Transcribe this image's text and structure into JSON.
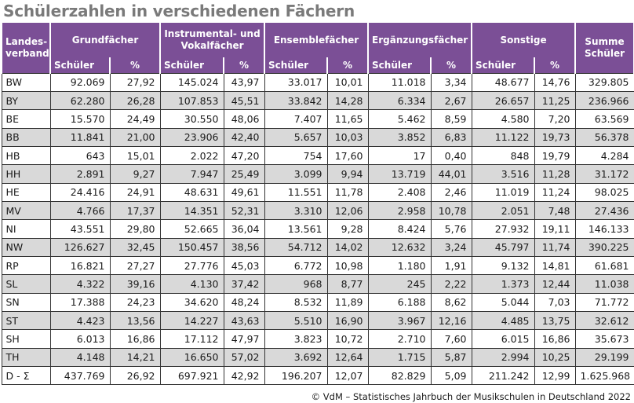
{
  "title": "Schülerzahlen in verschiedenen Fächern",
  "headers": {
    "state": "Landes-verband",
    "groups": [
      "Grundfächer",
      "Instrumental- und Vokalfächer",
      "Ensemblefächer",
      "Ergänzungsfächer",
      "Sonstige"
    ],
    "sum": "Summe Schüler",
    "students": "Schüler",
    "percent": "%"
  },
  "rows": [
    [
      "BW",
      "92.069",
      "27,92",
      "145.024",
      "43,97",
      "33.017",
      "10,01",
      "11.018",
      "3,34",
      "48.677",
      "14,76",
      "329.805"
    ],
    [
      "BY",
      "62.280",
      "26,28",
      "107.853",
      "45,51",
      "33.842",
      "14,28",
      "6.334",
      "2,67",
      "26.657",
      "11,25",
      "236.966"
    ],
    [
      "BE",
      "15.570",
      "24,49",
      "30.550",
      "48,06",
      "7.407",
      "11,65",
      "5.462",
      "8,59",
      "4.580",
      "7,20",
      "63.569"
    ],
    [
      "BB",
      "11.841",
      "21,00",
      "23.906",
      "42,40",
      "5.657",
      "10,03",
      "3.852",
      "6,83",
      "11.122",
      "19,73",
      "56.378"
    ],
    [
      "HB",
      "643",
      "15,01",
      "2.022",
      "47,20",
      "754",
      "17,60",
      "17",
      "0,40",
      "848",
      "19,79",
      "4.284"
    ],
    [
      "HH",
      "2.891",
      "9,27",
      "7.947",
      "25,49",
      "3.099",
      "9,94",
      "13.719",
      "44,01",
      "3.516",
      "11,28",
      "31.172"
    ],
    [
      "HE",
      "24.416",
      "24,91",
      "48.631",
      "49,61",
      "11.551",
      "11,78",
      "2.408",
      "2,46",
      "11.019",
      "11,24",
      "98.025"
    ],
    [
      "MV",
      "4.766",
      "17,37",
      "14.351",
      "52,31",
      "3.310",
      "12,06",
      "2.958",
      "10,78",
      "2.051",
      "7,48",
      "27.436"
    ],
    [
      "NI",
      "43.551",
      "29,80",
      "52.665",
      "36,04",
      "13.561",
      "9,28",
      "8.424",
      "5,76",
      "27.932",
      "19,11",
      "146.133"
    ],
    [
      "NW",
      "126.627",
      "32,45",
      "150.457",
      "38,56",
      "54.712",
      "14,02",
      "12.632",
      "3,24",
      "45.797",
      "11,74",
      "390.225"
    ],
    [
      "RP",
      "16.821",
      "27,27",
      "27.776",
      "45,03",
      "6.772",
      "10,98",
      "1.180",
      "1,91",
      "9.132",
      "14,81",
      "61.681"
    ],
    [
      "SL",
      "4.322",
      "39,16",
      "4.130",
      "37,42",
      "968",
      "8,77",
      "245",
      "2,22",
      "1.373",
      "12,44",
      "11.038"
    ],
    [
      "SN",
      "17.388",
      "24,23",
      "34.620",
      "48,24",
      "8.532",
      "11,89",
      "6.188",
      "8,62",
      "5.044",
      "7,03",
      "71.772"
    ],
    [
      "ST",
      "4.423",
      "13,56",
      "14.227",
      "43,63",
      "5.510",
      "16,90",
      "3.967",
      "12,16",
      "4.485",
      "13,75",
      "32.612"
    ],
    [
      "SH",
      "6.013",
      "16,86",
      "17.112",
      "47,97",
      "3.823",
      "10,72",
      "2.710",
      "7,60",
      "6.015",
      "16,86",
      "35.673"
    ],
    [
      "TH",
      "4.148",
      "14,21",
      "16.650",
      "57,02",
      "3.692",
      "12,64",
      "1.715",
      "5,87",
      "2.994",
      "10,25",
      "29.199"
    ],
    [
      "D - Σ",
      "437.769",
      "26,92",
      "697.921",
      "42,92",
      "196.207",
      "12,07",
      "82.829",
      "5,09",
      "211.242",
      "12,99",
      "1.625.968"
    ]
  ],
  "footer": "© VdM – Statistisches Jahrbuch der Musikschulen in Deutschland 2022",
  "colors": {
    "header_bg": "#7b4f96",
    "stripe": "#d9d9d9",
    "title": "#7a7a7a"
  }
}
